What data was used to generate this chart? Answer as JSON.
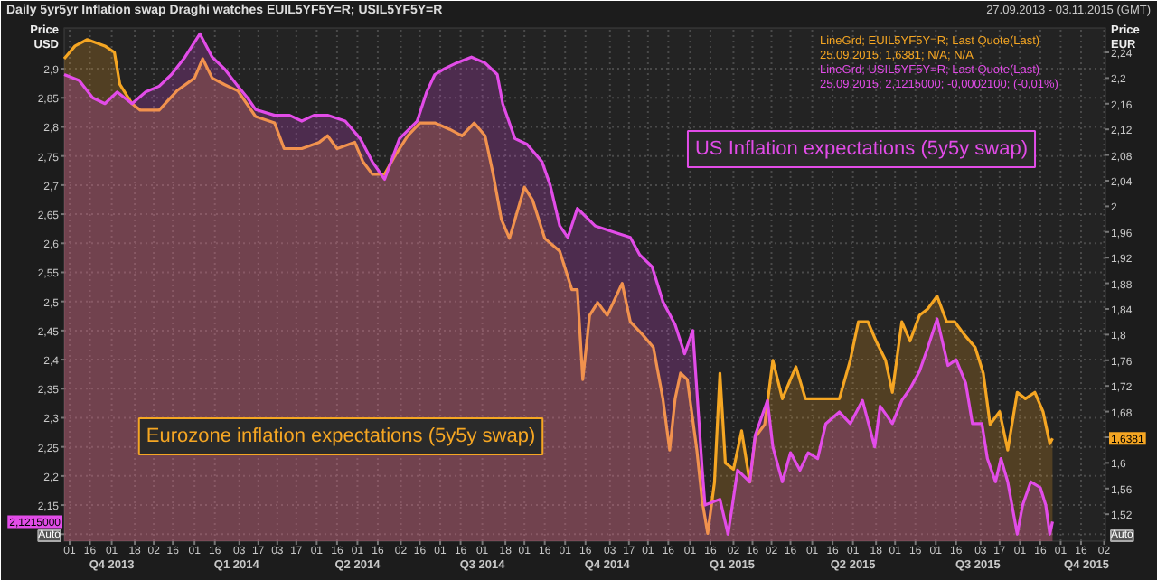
{
  "chart_data": {
    "type": "area",
    "title": "Daily 5yr5yr Inflation swap Draghi watches EUIL5YF5Y=R; USIL5YF5Y=R",
    "ylabel": "Price\nUSD",
    "y2label": "Price\nEUR",
    "xlim": [
      "2013-09-27",
      "2015-11-03"
    ],
    "xticks": [
      {
        "value": "2013-10-01",
        "label": "01"
      },
      {
        "value": "2013-10-16",
        "label": "16"
      },
      {
        "value": "2013-11-01",
        "label": "01"
      },
      {
        "value": "2013-11-18",
        "label": "18"
      },
      {
        "value": "2013-12-02",
        "label": "02"
      },
      {
        "value": "2013-12-16",
        "label": "16"
      },
      {
        "value": "2014-01-01",
        "label": "01"
      },
      {
        "value": "2014-01-16",
        "label": "16"
      },
      {
        "value": "2014-02-03",
        "label": "03"
      },
      {
        "value": "2014-02-17",
        "label": "17"
      },
      {
        "value": "2014-03-03",
        "label": "03"
      },
      {
        "value": "2014-03-17",
        "label": "17"
      },
      {
        "value": "2014-04-01",
        "label": "01"
      },
      {
        "value": "2014-04-16",
        "label": "16"
      },
      {
        "value": "2014-05-01",
        "label": "01"
      },
      {
        "value": "2014-05-16",
        "label": "16"
      },
      {
        "value": "2014-06-02",
        "label": "02"
      },
      {
        "value": "2014-06-16",
        "label": "16"
      },
      {
        "value": "2014-07-01",
        "label": "01"
      },
      {
        "value": "2014-07-16",
        "label": "16"
      },
      {
        "value": "2014-08-01",
        "label": "01"
      },
      {
        "value": "2014-08-18",
        "label": "18"
      },
      {
        "value": "2014-09-01",
        "label": "01"
      },
      {
        "value": "2014-09-16",
        "label": "16"
      },
      {
        "value": "2014-10-01",
        "label": "01"
      },
      {
        "value": "2014-10-16",
        "label": "16"
      },
      {
        "value": "2014-11-03",
        "label": "03"
      },
      {
        "value": "2014-11-17",
        "label": "17"
      },
      {
        "value": "2014-12-01",
        "label": "01"
      },
      {
        "value": "2014-12-16",
        "label": "16"
      },
      {
        "value": "2015-01-01",
        "label": "01"
      },
      {
        "value": "2015-01-16",
        "label": "16"
      },
      {
        "value": "2015-02-02",
        "label": "02"
      },
      {
        "value": "2015-02-16",
        "label": "16"
      },
      {
        "value": "2015-03-02",
        "label": "02"
      },
      {
        "value": "2015-03-16",
        "label": "16"
      },
      {
        "value": "2015-04-01",
        "label": "01"
      },
      {
        "value": "2015-04-16",
        "label": "16"
      },
      {
        "value": "2015-05-01",
        "label": "01"
      },
      {
        "value": "2015-05-18",
        "label": "18"
      },
      {
        "value": "2015-06-01",
        "label": "01"
      },
      {
        "value": "2015-06-16",
        "label": "16"
      },
      {
        "value": "2015-07-01",
        "label": "01"
      },
      {
        "value": "2015-07-16",
        "label": "16"
      },
      {
        "value": "2015-08-03",
        "label": "03"
      },
      {
        "value": "2015-08-17",
        "label": "17"
      },
      {
        "value": "2015-09-01",
        "label": "01"
      },
      {
        "value": "2015-09-16",
        "label": "16"
      },
      {
        "value": "2015-10-01",
        "label": "01"
      },
      {
        "value": "2015-10-16",
        "label": "16"
      },
      {
        "value": "2015-11-02",
        "label": "02"
      }
    ],
    "x2lim": [
      "2013-09-27",
      "2015-11-03"
    ],
    "x2ticks": [
      {
        "value": "2013-11-01",
        "label": "Q4 2013"
      },
      {
        "value": "2014-02-01",
        "label": "Q1 2014"
      },
      {
        "value": "2014-05-01",
        "label": "Q2 2014"
      },
      {
        "value": "2014-08-01",
        "label": "Q3 2014"
      },
      {
        "value": "2014-11-01",
        "label": "Q4 2014"
      },
      {
        "value": "2015-02-01",
        "label": "Q1 2015"
      },
      {
        "value": "2015-05-01",
        "label": "Q2 2015"
      },
      {
        "value": "2015-08-01",
        "label": "Q3 2015"
      },
      {
        "value": "2015-10-20",
        "label": "Q4 2015"
      }
    ],
    "ylim": [
      2.088,
      2.97
    ],
    "yticks": [
      {
        "value": 2.1,
        "label": null
      },
      {
        "value": 2.15,
        "label": "2,15"
      },
      {
        "value": 2.2,
        "label": "2,2"
      },
      {
        "value": 2.25,
        "label": "2,25"
      },
      {
        "value": 2.3,
        "label": "2,3"
      },
      {
        "value": 2.35,
        "label": "2,35"
      },
      {
        "value": 2.4,
        "label": "2,4"
      },
      {
        "value": 2.45,
        "label": "2,45"
      },
      {
        "value": 2.5,
        "label": "2,5"
      },
      {
        "value": 2.55,
        "label": "2,55"
      },
      {
        "value": 2.6,
        "label": "2,6"
      },
      {
        "value": 2.65,
        "label": "2,65"
      },
      {
        "value": 2.7,
        "label": "2,7"
      },
      {
        "value": 2.75,
        "label": "2,75"
      },
      {
        "value": 2.8,
        "label": "2,8"
      },
      {
        "value": 2.85,
        "label": "2,85"
      },
      {
        "value": 2.9,
        "label": "2,9"
      }
    ],
    "y2lim": [
      1.478,
      2.278
    ],
    "y2ticks": [
      {
        "value": 1.52,
        "label": "1,52"
      },
      {
        "value": 1.56,
        "label": "1,56"
      },
      {
        "value": 1.6,
        "label": "1,6"
      },
      {
        "value": 1.64,
        "label": null
      },
      {
        "value": 1.68,
        "label": "1,68"
      },
      {
        "value": 1.72,
        "label": "1,72"
      },
      {
        "value": 1.76,
        "label": "1,76"
      },
      {
        "value": 1.8,
        "label": "1,8"
      },
      {
        "value": 1.84,
        "label": "1,84"
      },
      {
        "value": 1.88,
        "label": "1,88"
      },
      {
        "value": 1.92,
        "label": "1,92"
      },
      {
        "value": 1.96,
        "label": "1,96"
      },
      2,
      {
        "value": 2.04,
        "label": "2,04"
      },
      {
        "value": 2.08,
        "label": "2,08"
      },
      {
        "value": 2.12,
        "label": "2,12"
      },
      {
        "value": 2.16,
        "label": "2,16"
      },
      {
        "value": 2.2,
        "label": "2,2"
      },
      {
        "value": 2.24,
        "label": "2,24"
      }
    ],
    "grid": true,
    "legend": "top right",
    "series": [
      {
        "name": "LineGrd; EUIL5YF5Y=R; Last Quote(Last)",
        "color": "#f5a623",
        "axis": "y2",
        "x": [
          "2013-09-27",
          "2013-10-05",
          "2013-10-14",
          "2013-10-27",
          "2013-11-03",
          "2013-11-07",
          "2013-11-16",
          "2013-11-22",
          "2013-12-06",
          "2013-12-19",
          "2014-01-01",
          "2014-01-07",
          "2014-01-14",
          "2014-01-23",
          "2014-02-02",
          "2014-02-15",
          "2014-03-01",
          "2014-03-08",
          "2014-03-21",
          "2014-04-03",
          "2014-04-09",
          "2014-04-16",
          "2014-04-29",
          "2014-05-05",
          "2014-05-12",
          "2014-05-21",
          "2014-05-29",
          "2014-06-07",
          "2014-06-16",
          "2014-06-27",
          "2014-07-08",
          "2014-07-17",
          "2014-07-26",
          "2014-08-03",
          "2014-08-09",
          "2014-08-15",
          "2014-08-21",
          "2014-09-01",
          "2014-09-07",
          "2014-09-16",
          "2014-09-27",
          "2014-10-06",
          "2014-10-10",
          "2014-10-14",
          "2014-10-19",
          "2014-10-25",
          "2014-11-01",
          "2014-11-12",
          "2014-11-18",
          "2014-11-27",
          "2014-12-05",
          "2014-12-12",
          "2014-12-17",
          "2014-12-21",
          "2014-12-25",
          "2014-12-30",
          "2015-01-06",
          "2015-01-10",
          "2015-01-14",
          "2015-01-19",
          "2015-01-23",
          "2015-01-27",
          "2015-02-02",
          "2015-02-08",
          "2015-02-14",
          "2015-02-18",
          "2015-02-25",
          "2015-03-03",
          "2015-03-10",
          "2015-03-14",
          "2015-03-20",
          "2015-03-27",
          "2015-04-02",
          "2015-04-11",
          "2015-04-21",
          "2015-04-29",
          "2015-05-05",
          "2015-05-12",
          "2015-05-18",
          "2015-05-25",
          "2015-05-30",
          "2015-06-06",
          "2015-06-12",
          "2015-06-19",
          "2015-06-25",
          "2015-07-02",
          "2015-07-09",
          "2015-07-15",
          "2015-07-22",
          "2015-07-30",
          "2015-08-05",
          "2015-08-10",
          "2015-08-17",
          "2015-08-23",
          "2015-08-30",
          "2015-09-05",
          "2015-09-12",
          "2015-09-18",
          "2015-09-23",
          "2015-09-25"
        ],
        "values": [
          2.23,
          2.25,
          2.26,
          2.25,
          2.24,
          2.19,
          2.16,
          2.15,
          2.15,
          2.18,
          2.2,
          2.23,
          2.2,
          2.19,
          2.18,
          2.14,
          2.13,
          2.09,
          2.09,
          2.1,
          2.11,
          2.09,
          2.1,
          2.07,
          2.05,
          2.05,
          2.08,
          2.11,
          2.13,
          2.13,
          2.12,
          2.11,
          2.13,
          2.11,
          2.05,
          1.98,
          1.95,
          2.03,
          2.01,
          1.95,
          1.93,
          1.87,
          1.87,
          1.73,
          1.83,
          1.85,
          1.83,
          1.88,
          1.82,
          1.8,
          1.78,
          1.7,
          1.62,
          1.7,
          1.74,
          1.73,
          1.62,
          1.54,
          1.49,
          1.57,
          1.74,
          1.6,
          1.59,
          1.65,
          1.57,
          1.64,
          1.66,
          1.76,
          1.7,
          1.72,
          1.75,
          1.7,
          1.7,
          1.7,
          1.7,
          1.76,
          1.82,
          1.82,
          1.79,
          1.76,
          1.71,
          1.82,
          1.79,
          1.83,
          1.84,
          1.86,
          1.82,
          1.82,
          1.8,
          1.78,
          1.74,
          1.66,
          1.68,
          1.62,
          1.71,
          1.7,
          1.71,
          1.68,
          1.63,
          1.6381
        ]
      },
      {
        "name": "LineGrd; USIL5YF5Y=R; Last Quote(Last)",
        "color": "#e24ce8",
        "x": [
          "2013-09-27",
          "2013-10-08",
          "2013-10-18",
          "2013-10-27",
          "2013-11-05",
          "2013-11-16",
          "2013-11-26",
          "2013-12-06",
          "2013-12-15",
          "2013-12-25",
          "2014-01-05",
          "2014-01-14",
          "2014-01-23",
          "2014-02-02",
          "2014-02-09",
          "2014-02-15",
          "2014-03-01",
          "2014-03-12",
          "2014-03-21",
          "2014-03-30",
          "2014-04-09",
          "2014-04-22",
          "2014-05-03",
          "2014-05-12",
          "2014-05-21",
          "2014-06-01",
          "2014-06-14",
          "2014-06-21",
          "2014-06-27",
          "2014-07-04",
          "2014-07-13",
          "2014-07-24",
          "2014-08-03",
          "2014-08-12",
          "2014-08-16",
          "2014-08-25",
          "2014-09-03",
          "2014-09-14",
          "2014-09-20",
          "2014-09-27",
          "2014-10-03",
          "2014-10-10",
          "2014-10-23",
          "2014-11-05",
          "2014-11-18",
          "2014-11-25",
          "2014-12-04",
          "2014-12-12",
          "2014-12-21",
          "2014-12-28",
          "2015-01-03",
          "2015-01-10",
          "2015-01-12",
          "2015-01-23",
          "2015-01-29",
          "2015-02-05",
          "2015-02-14",
          "2015-02-18",
          "2015-02-27",
          "2015-03-03",
          "2015-03-10",
          "2015-03-16",
          "2015-03-23",
          "2015-03-29",
          "2015-04-05",
          "2015-04-11",
          "2015-04-21",
          "2015-04-29",
          "2015-05-08",
          "2015-05-17",
          "2015-05-21",
          "2015-05-30",
          "2015-06-06",
          "2015-06-12",
          "2015-06-19",
          "2015-06-25",
          "2015-07-02",
          "2015-07-06",
          "2015-07-10",
          "2015-07-16",
          "2015-07-23",
          "2015-07-28",
          "2015-08-04",
          "2015-08-08",
          "2015-08-14",
          "2015-08-18",
          "2015-08-23",
          "2015-08-30",
          "2015-09-03",
          "2015-09-09",
          "2015-09-16",
          "2015-09-20",
          "2015-09-23",
          "2015-09-25"
        ],
        "values": [
          2.89,
          2.88,
          2.85,
          2.84,
          2.86,
          2.84,
          2.86,
          2.87,
          2.89,
          2.92,
          2.96,
          2.92,
          2.9,
          2.87,
          2.85,
          2.83,
          2.82,
          2.82,
          2.81,
          2.82,
          2.82,
          2.81,
          2.78,
          2.74,
          2.71,
          2.78,
          2.81,
          2.86,
          2.89,
          2.9,
          2.91,
          2.92,
          2.91,
          2.89,
          2.84,
          2.78,
          2.77,
          2.74,
          2.7,
          2.63,
          2.61,
          2.66,
          2.63,
          2.62,
          2.61,
          2.58,
          2.56,
          2.5,
          2.46,
          2.41,
          2.45,
          2.21,
          2.15,
          2.16,
          2.1,
          2.21,
          2.19,
          2.27,
          2.33,
          2.25,
          2.19,
          2.24,
          2.21,
          2.24,
          2.23,
          2.29,
          2.31,
          2.29,
          2.33,
          2.25,
          2.32,
          2.29,
          2.33,
          2.35,
          2.38,
          2.42,
          2.47,
          2.43,
          2.39,
          2.4,
          2.36,
          2.29,
          2.29,
          2.23,
          2.19,
          2.23,
          2.19,
          2.1,
          2.15,
          2.19,
          2.18,
          2.15,
          2.1,
          2.1215
        ]
      }
    ],
    "annotations": [
      "27.09.2013 - 03.11.2015 (GMT)",
      "25.09.2015; 1,6381; N/A; N/A",
      "25.09.2015; 2,1215000; -0,0002100; (-0,01%)",
      "Auto",
      "Auto",
      "US Inflation expectations (5y5y swap)",
      "Eurozone inflation expectations (5y5y swap)",
      "1,6381",
      {
        "text": "2,1215000",
        "x": "2013-09-27",
        "y": 2.1215
      }
    ]
  }
}
